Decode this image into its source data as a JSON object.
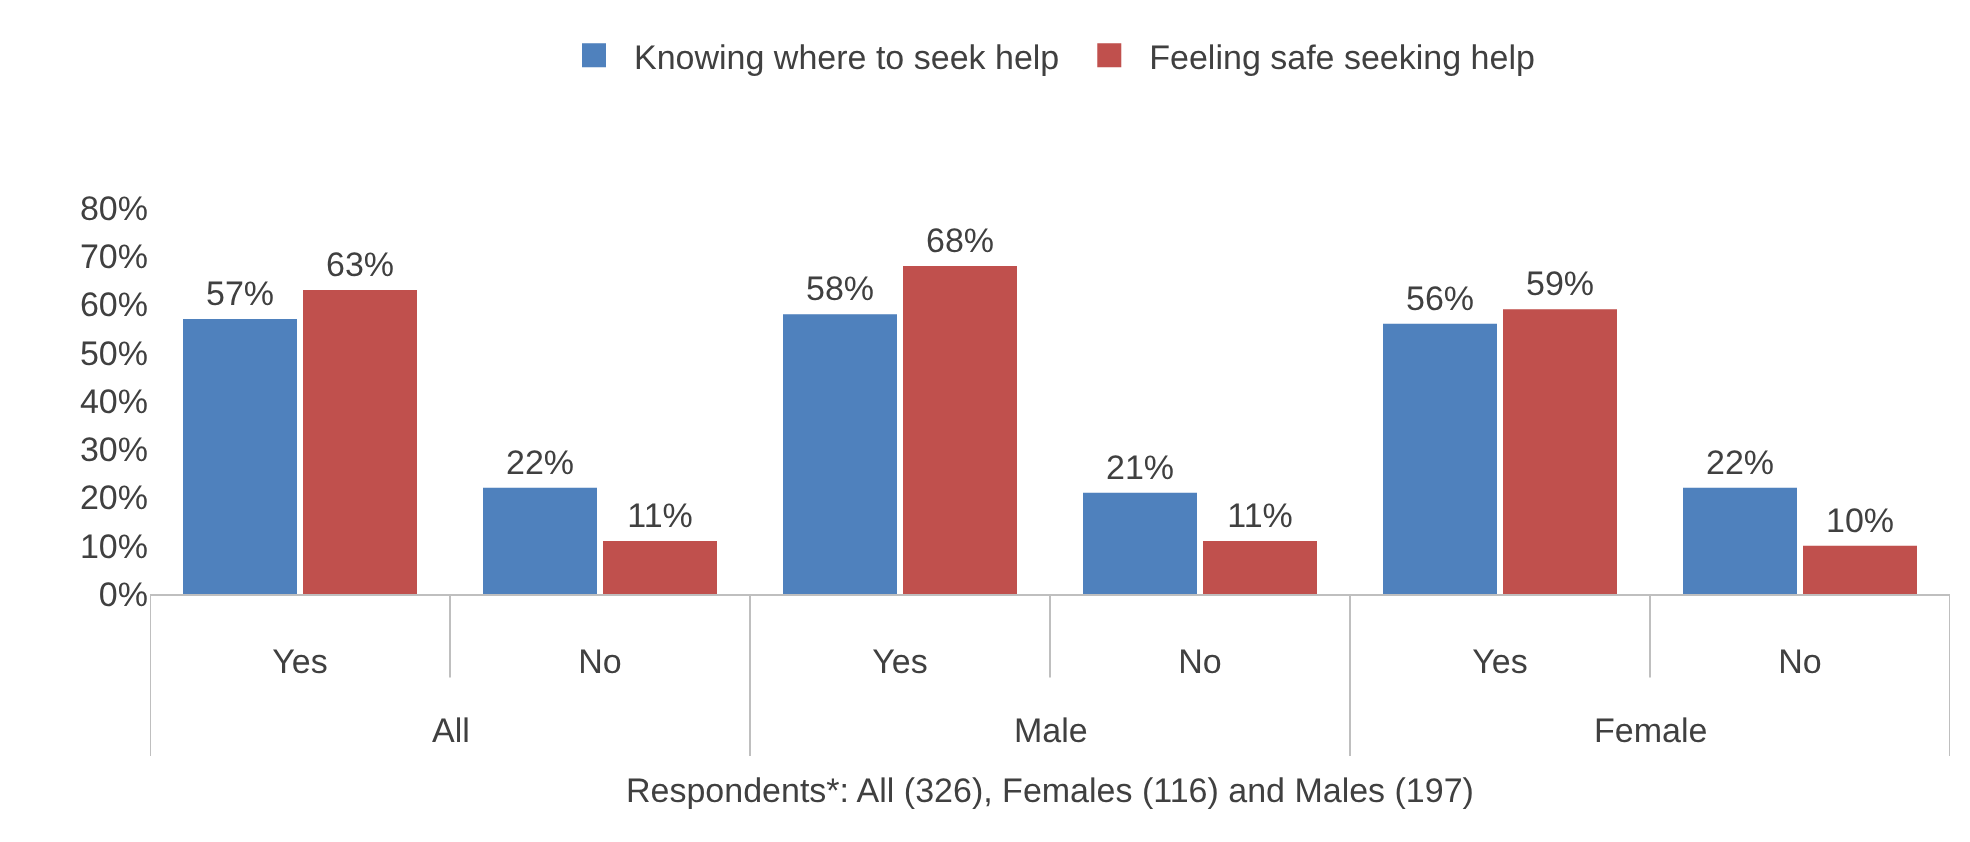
{
  "chart_data": {
    "type": "bar",
    "categories": [
      "Yes",
      "No",
      "Yes",
      "No",
      "Yes",
      "No"
    ],
    "series": [
      {
        "name": "Knowing where to seek help",
        "color": "#4f81bd",
        "values": [
          57,
          22,
          58,
          21,
          56,
          22
        ],
        "value_labels": [
          "57%",
          "22%",
          "58%",
          "21%",
          "56%",
          "22%"
        ]
      },
      {
        "name": "Feeling safe seeking help",
        "color": "#c0504d",
        "values": [
          63,
          11,
          68,
          11,
          59,
          10
        ],
        "value_labels": [
          "63%",
          "11%",
          "68%",
          "11%",
          "59%",
          "10%"
        ]
      }
    ],
    "ylim": [
      0,
      80
    ],
    "yticks": [
      {
        "value": 0,
        "label": "0%"
      },
      {
        "value": 10,
        "label": "10%"
      },
      {
        "value": 20,
        "label": "20%"
      },
      {
        "value": 30,
        "label": "30%"
      },
      {
        "value": 40,
        "label": "40%"
      },
      {
        "value": 50,
        "label": "50%"
      },
      {
        "value": 60,
        "label": "60%"
      },
      {
        "value": 70,
        "label": "70%"
      },
      {
        "value": 80,
        "label": "80%"
      }
    ],
    "annotations": [
      "All",
      "Male",
      "Female"
    ],
    "xlabel": "Respondents*: All (326), Females (116) and Males (197)",
    "grid": false,
    "legend": "top"
  }
}
